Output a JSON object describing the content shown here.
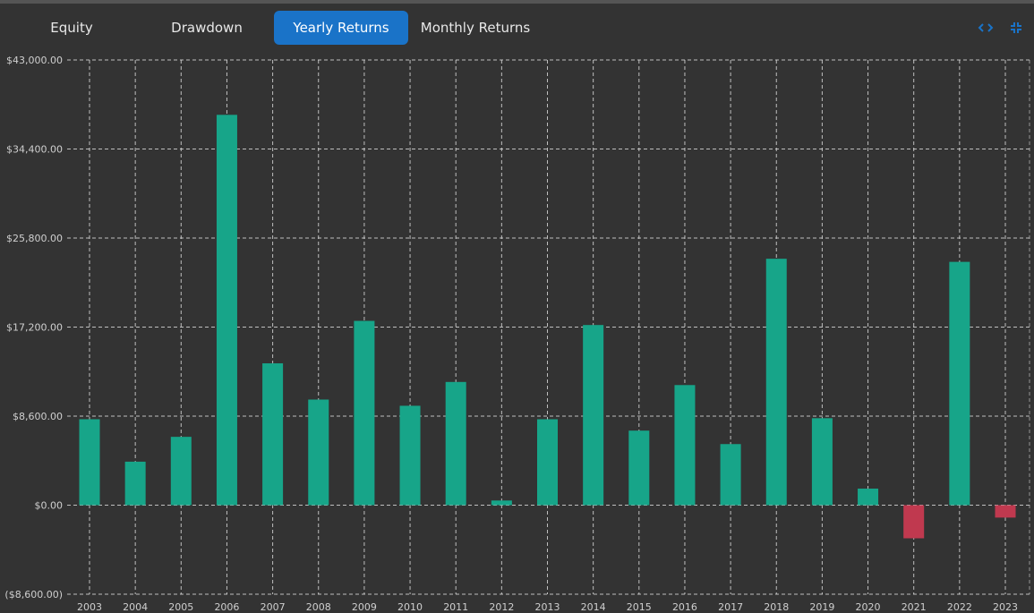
{
  "tabs": [
    {
      "label": "Equity",
      "active": false
    },
    {
      "label": "Drawdown",
      "active": false
    },
    {
      "label": "Yearly Returns",
      "active": true
    },
    {
      "label": "Monthly Returns",
      "active": false
    }
  ],
  "toolbar": {
    "code_icon": "code-brackets-icon",
    "collapse_icon": "collapse-arrows-icon"
  },
  "colors": {
    "positive": "#17a589",
    "negative": "#c0394f",
    "grid": "#d8d8d8",
    "axis_text": "#cfcfcf",
    "accent": "#1a73c8"
  },
  "chart_data": {
    "type": "bar",
    "categories": [
      "2003",
      "2004",
      "2005",
      "2006",
      "2007",
      "2008",
      "2009",
      "2010",
      "2011",
      "2012",
      "2013",
      "2014",
      "2015",
      "2016",
      "2017",
      "2018",
      "2019",
      "2020",
      "2021",
      "2022",
      "2023"
    ],
    "values": [
      8300,
      4200,
      6600,
      37700,
      13700,
      10200,
      17800,
      9600,
      11900,
      450,
      8300,
      17400,
      7200,
      11600,
      5900,
      23800,
      8400,
      1600,
      -3200,
      23500,
      -1200
    ],
    "ylim": [
      -8600,
      43000
    ],
    "yticks": [
      -8600,
      0,
      8600,
      17200,
      25800,
      34400,
      43000
    ],
    "ytick_labels": [
      "($8,600.00)",
      "$0.00",
      "$8,600.00",
      "$17,200.00",
      "$25,800.00",
      "$34,400.00",
      "$43,000.00"
    ],
    "grid": true,
    "title": "",
    "xlabel": "",
    "ylabel": ""
  }
}
